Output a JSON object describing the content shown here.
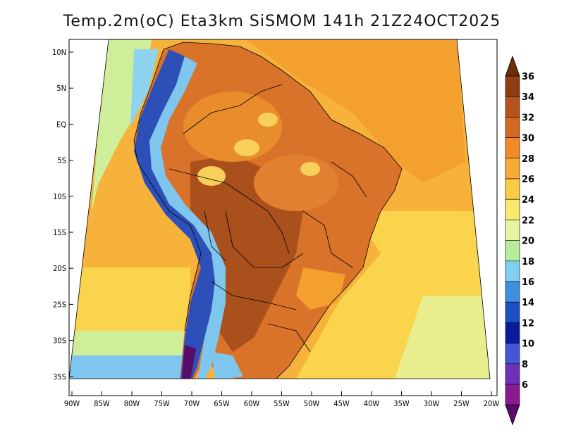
{
  "title": "Temp.2m(oC) Eta3km SiSMOM 141h 21Z24OCT2025",
  "lat_labels": [
    "10N",
    "5N",
    "EQ",
    "5S",
    "10S",
    "15S",
    "20S",
    "25S",
    "30S",
    "35S"
  ],
  "lon_labels": [
    "90W",
    "85W",
    "80W",
    "75W",
    "70W",
    "65W",
    "60W",
    "55W",
    "50W",
    "45W",
    "40W",
    "35W",
    "30W",
    "25W",
    "20W"
  ],
  "colorbar": {
    "levels": [
      "36",
      "34",
      "32",
      "30",
      "28",
      "26",
      "24",
      "22",
      "20",
      "18",
      "16",
      "14",
      "12",
      "10",
      "8",
      "6"
    ],
    "colors": [
      "#6b2c0a",
      "#8f3d10",
      "#b4531c",
      "#d46a20",
      "#ef8a25",
      "#f7ab35",
      "#f9cc44",
      "#fbe96c",
      "#e6f3a0",
      "#b7ec9c",
      "#7fd0f0",
      "#3f8fe0",
      "#1b4fc4",
      "#0a1a9c",
      "#4656d8",
      "#7030b8",
      "#8a1a90",
      "#5a0a68"
    ]
  },
  "colors": {
    "ocean_warm": "#f6b23a",
    "ocean_warmer": "#f3a02e",
    "ocean_cool": "#f9d44c",
    "ocean_south": "#e8ee8e",
    "land_hot": "#a9501c",
    "land_warm": "#d9732a",
    "andes": "#2c50b8",
    "border": "#000000"
  }
}
